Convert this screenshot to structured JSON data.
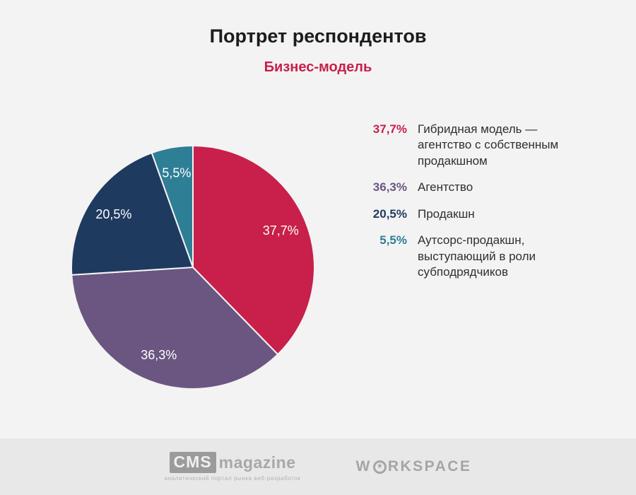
{
  "header": {
    "title": "Портрет респондентов",
    "subtitle": "Бизнес-модель"
  },
  "chart_data": {
    "type": "pie",
    "title": "Бизнес-модель",
    "unit": "%",
    "start_angle_deg": 0,
    "direction": "clockwise",
    "slices": [
      {
        "label": "Гибридная модель — агентство с собственным продакшном",
        "value": 37.7,
        "display": "37,7%",
        "color": "#c8204a"
      },
      {
        "label": "Агентство",
        "value": 36.3,
        "display": "36,3%",
        "color": "#6a5680"
      },
      {
        "label": "Продакшн",
        "value": 20.5,
        "display": "20,5%",
        "color": "#1f3a5f"
      },
      {
        "label": "Аутсорс-продакшн, выступающий в роли субподрядчиков",
        "value": 5.5,
        "display": "5,5%",
        "color": "#2e7e96"
      }
    ]
  },
  "legend": {
    "items": [
      {
        "pct": "37,7%",
        "text": "Гибридная модель — агентство с собственным продакшном",
        "color": "#c8204a"
      },
      {
        "pct": "36,3%",
        "text": "Агентство",
        "color": "#6a5680"
      },
      {
        "pct": "20,5%",
        "text": "Продакшн",
        "color": "#1f3a5f"
      },
      {
        "pct": "5,5%",
        "text": "Аутсорс-продакшн, выступающий в роли субподрядчиков",
        "color": "#2e7e96"
      }
    ]
  },
  "footer": {
    "cms": {
      "box": "CMS",
      "name": "magazine",
      "caption": "аналитический портал рынка веб-разработок"
    },
    "workspace": {
      "prefix": "W",
      "star": "★",
      "suffix": "RKSPACE"
    }
  }
}
